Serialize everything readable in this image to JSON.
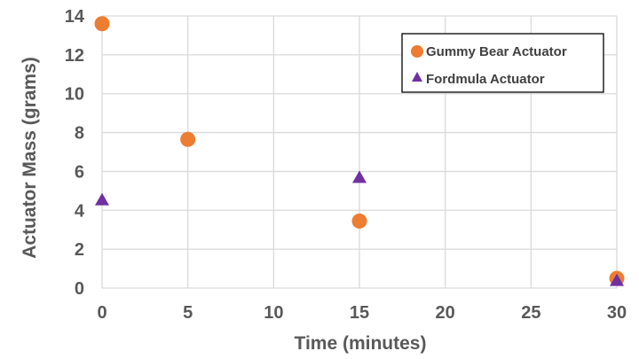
{
  "chart_data": {
    "type": "scatter",
    "xlabel": "Time (minutes)",
    "ylabel": "Actuator Mass (grams)",
    "xlim": [
      0,
      30
    ],
    "ylim": [
      0,
      14
    ],
    "x_ticks": [
      "0",
      "5",
      "10",
      "15",
      "20",
      "25",
      "30"
    ],
    "y_ticks": [
      "0",
      "2",
      "4",
      "6",
      "8",
      "10",
      "12",
      "14"
    ],
    "grid": true,
    "legend_position": "top-right",
    "series": [
      {
        "name": "Gummy Bear Actuator",
        "marker": "circle",
        "color": "#ED7D31",
        "points": [
          {
            "x": 0,
            "y": 13.6
          },
          {
            "x": 5,
            "y": 7.65
          },
          {
            "x": 15,
            "y": 3.45
          },
          {
            "x": 30,
            "y": 0.5
          }
        ]
      },
      {
        "name": "Fordmula Actuator",
        "marker": "triangle",
        "color": "#7030A0",
        "points": [
          {
            "x": 0,
            "y": 4.5
          },
          {
            "x": 15,
            "y": 5.65
          },
          {
            "x": 30,
            "y": 0.35
          }
        ]
      }
    ]
  }
}
